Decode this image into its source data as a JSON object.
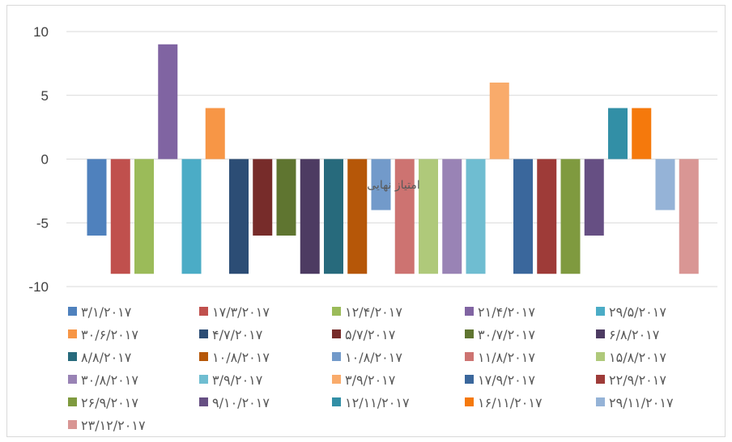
{
  "chart_data": {
    "type": "bar",
    "center_label": "امتیاز نهایی",
    "ylim": [
      -10,
      10
    ],
    "yticks": [
      10,
      5,
      0,
      -5,
      -10
    ],
    "grid": true,
    "legend_position": "bottom",
    "series": [
      {
        "name": "۳/۱/۲۰۱۷",
        "value": -6,
        "color": "#4f81bd"
      },
      {
        "name": "۱۷/۳/۲۰۱۷",
        "value": -9,
        "color": "#c0504d"
      },
      {
        "name": "۱۲/۴/۲۰۱۷",
        "value": -9,
        "color": "#9bbb59"
      },
      {
        "name": "۲۱/۴/۲۰۱۷",
        "value": 9,
        "color": "#8064a2"
      },
      {
        "name": "۲۹/۵/۲۰۱۷",
        "value": -9,
        "color": "#4bacc6"
      },
      {
        "name": "۳۰/۶/۲۰۱۷",
        "value": 4,
        "color": "#f79646"
      },
      {
        "name": "۴/۷/۲۰۱۷",
        "value": -9,
        "color": "#2c4d75"
      },
      {
        "name": "۵/۷/۲۰۱۷",
        "value": -6,
        "color": "#772c2a"
      },
      {
        "name": "۳۰/۷/۲۰۱۷",
        "value": -6,
        "color": "#5f7530"
      },
      {
        "name": "۶/۸/۲۰۱۷",
        "value": -9,
        "color": "#4d3b62"
      },
      {
        "name": "۸/۸/۲۰۱۷",
        "value": -9,
        "color": "#276a7c"
      },
      {
        "name": "۱۰/۸/۲۰۱۷",
        "value": -9,
        "color": "#b65708"
      },
      {
        "name": "۱۰/۸/۲۰۱۷",
        "value": -4,
        "color": "#729aca"
      },
      {
        "name": "۱۱/۸/۲۰۱۷",
        "value": -9,
        "color": "#cd7371"
      },
      {
        "name": "۱۵/۸/۲۰۱۷",
        "value": -9,
        "color": "#afc97a"
      },
      {
        "name": "۳۰/۸/۲۰۱۷",
        "value": -9,
        "color": "#9983b5"
      },
      {
        "name": "۳/۹/۲۰۱۷",
        "value": -9,
        "color": "#6fbdd1"
      },
      {
        "name": "۳/۹/۲۰۱۷",
        "value": 6,
        "color": "#f9ab6b"
      },
      {
        "name": "۱۷/۹/۲۰۱۷",
        "value": -9,
        "color": "#3a679c"
      },
      {
        "name": "۲۲/۹/۲۰۱۷",
        "value": -9,
        "color": "#9e3b38"
      },
      {
        "name": "۲۶/۹/۲۰۱۷",
        "value": -9,
        "color": "#7f9a3f"
      },
      {
        "name": "۹/۱۰/۲۰۱۷",
        "value": -6,
        "color": "#664f83"
      },
      {
        "name": "۱۲/۱۱/۲۰۱۷",
        "value": 4,
        "color": "#328fa6"
      },
      {
        "name": "۱۶/۱۱/۲۰۱۷",
        "value": 4,
        "color": "#f5790c"
      },
      {
        "name": "۲۹/۱۱/۲۰۱۷",
        "value": -4,
        "color": "#95b3d7"
      },
      {
        "name": "۲۳/۱۲/۲۰۱۷",
        "value": -9,
        "color": "#d99694"
      }
    ]
  }
}
